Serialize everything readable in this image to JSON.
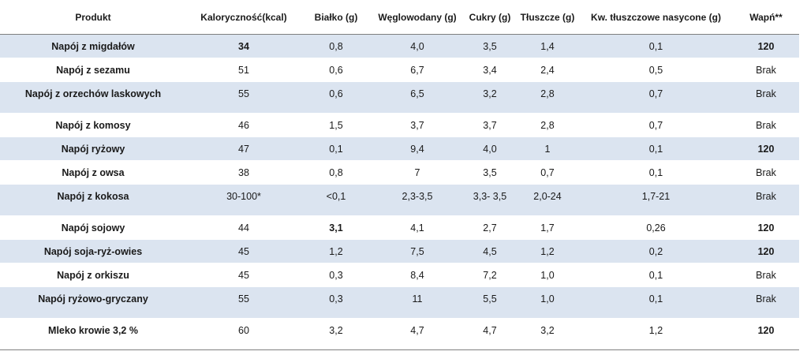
{
  "headers": [
    "Produkt",
    "Kaloryczność(kcal)",
    "Białko (g)",
    "Węglowodany (g)",
    "Cukry (g)",
    "Tłuszcze (g)",
    "Kw. tłuszczowe nasycone (g)",
    "Wapń**"
  ],
  "rows": [
    {
      "name": "Napój z migdałów",
      "kcal": "34",
      "bialko": "0,8",
      "wegl": "4,0",
      "cukry": "3,5",
      "tluszcze": "1,4",
      "nasycone": "0,1",
      "wapn": "120"
    },
    {
      "name": "Napój z sezamu",
      "kcal": "51",
      "bialko": "0,6",
      "wegl": "6,7",
      "cukry": "3,4",
      "tluszcze": "2,4",
      "nasycone": "0,5",
      "wapn": "Brak"
    },
    {
      "name": "Napój z orzechów laskowych",
      "kcal": "55",
      "bialko": "0,6",
      "wegl": "6,5",
      "cukry": "3,2",
      "tluszcze": "2,8",
      "nasycone": "0,7",
      "wapn": "Brak"
    },
    {
      "name": "Napój z komosy",
      "kcal": "46",
      "bialko": "1,5",
      "wegl": "3,7",
      "cukry": "3,7",
      "tluszcze": "2,8",
      "nasycone": "0,7",
      "wapn": "Brak"
    },
    {
      "name": "Napój ryżowy",
      "kcal": "47",
      "bialko": "0,1",
      "wegl": "9,4",
      "cukry": "4,0",
      "tluszcze": "1",
      "nasycone": "0,1",
      "wapn": "120"
    },
    {
      "name": "Napój z owsa",
      "kcal": "38",
      "bialko": "0,8",
      "wegl": "7",
      "cukry": "3,5",
      "tluszcze": "0,7",
      "nasycone": "0,1",
      "wapn": "Brak"
    },
    {
      "name": "Napój z kokosa",
      "kcal": "30-100*",
      "bialko": "<0,1",
      "wegl": "2,3-3,5",
      "cukry": "3,3- 3,5",
      "tluszcze": "2,0-24",
      "nasycone": "1,7-21",
      "wapn": "Brak"
    },
    {
      "name": "Napój sojowy",
      "kcal": "44",
      "bialko": "3,1",
      "wegl": "4,1",
      "cukry": "2,7",
      "tluszcze": "1,7",
      "nasycone": "0,26",
      "wapn": "120"
    },
    {
      "name": "Napój soja-ryż-owies",
      "kcal": "45",
      "bialko": "1,2",
      "wegl": "7,5",
      "cukry": "4,5",
      "tluszcze": "1,2",
      "nasycone": "0,2",
      "wapn": "120"
    },
    {
      "name": "Napój z orkiszu",
      "kcal": "45",
      "bialko": "0,3",
      "wegl": "8,4",
      "cukry": "7,2",
      "tluszcze": "1,0",
      "nasycone": "0,1",
      "wapn": "Brak"
    },
    {
      "name": "Napój ryżowo-gryczany",
      "kcal": "55",
      "bialko": "0,3",
      "wegl": "11",
      "cukry": "5,5",
      "tluszcze": "1,0",
      "nasycone": "0,1",
      "wapn": "Brak"
    },
    {
      "name": "Mleko krowie 3,2 %",
      "kcal": "60",
      "bialko": "3,2",
      "wegl": "4,7",
      "cukry": "4,7",
      "tluszcze": "3,2",
      "nasycone": "1,2",
      "wapn": "120"
    }
  ]
}
